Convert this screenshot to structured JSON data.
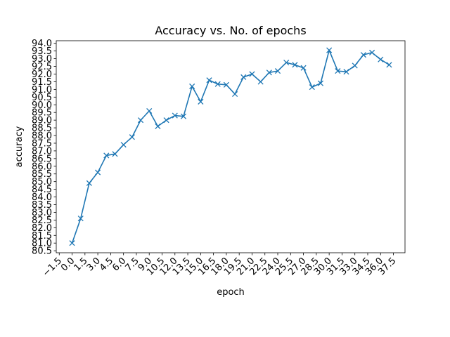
{
  "chart_data": {
    "type": "line",
    "title": "Accuracy vs. No. of epochs",
    "xlabel": "epoch",
    "ylabel": "accuracy",
    "xlim": [
      -1.85,
      38.85
    ],
    "ylim": [
      80.37,
      94.17
    ],
    "x_ticks": [
      -1.5,
      0.0,
      1.5,
      3.0,
      4.5,
      6.0,
      7.5,
      9.0,
      10.5,
      12.0,
      13.5,
      15.0,
      16.5,
      18.0,
      19.5,
      21.0,
      22.5,
      24.0,
      25.5,
      27.0,
      28.5,
      30.0,
      31.5,
      33.0,
      34.5,
      36.0,
      37.5
    ],
    "x_tick_labels": [
      "−1.5",
      "0.0",
      "1.5",
      "3.0",
      "4.5",
      "6.0",
      "7.5",
      "9.0",
      "10.5",
      "12.0",
      "13.5",
      "15.0",
      "16.5",
      "18.0",
      "19.5",
      "21.0",
      "22.5",
      "24.0",
      "25.5",
      "27.0",
      "28.5",
      "30.0",
      "31.5",
      "33.0",
      "34.5",
      "36.0",
      "37.5"
    ],
    "y_ticks": [
      80.5,
      81.0,
      81.5,
      82.0,
      82.5,
      83.0,
      83.5,
      84.0,
      84.5,
      85.0,
      85.5,
      86.0,
      86.5,
      87.0,
      87.5,
      88.0,
      88.5,
      89.0,
      89.5,
      90.0,
      90.5,
      91.0,
      91.5,
      92.0,
      92.5,
      93.0,
      93.5,
      94.0
    ],
    "y_tick_labels": [
      "80.5",
      "81.0",
      "81.5",
      "82.0",
      "82.5",
      "83.0",
      "83.5",
      "84.0",
      "84.5",
      "85.0",
      "85.5",
      "86.0",
      "86.5",
      "87.0",
      "87.5",
      "88.0",
      "88.5",
      "89.0",
      "89.5",
      "90.0",
      "90.5",
      "91.0",
      "91.5",
      "92.0",
      "92.5",
      "93.0",
      "93.5",
      "94.0"
    ],
    "grid": false,
    "line_color": "#1f77b4",
    "marker": "x",
    "series": [
      {
        "x": [
          0,
          1,
          2,
          3,
          4,
          5,
          6,
          7,
          8,
          9,
          10,
          11,
          12,
          13,
          14,
          15,
          16,
          17,
          18,
          19,
          20,
          21,
          22,
          23,
          24,
          25,
          26,
          27,
          28,
          29,
          30,
          31,
          32,
          33,
          34,
          35,
          36,
          37
        ],
        "values": [
          81.0,
          82.6,
          84.9,
          85.6,
          86.7,
          86.8,
          87.4,
          87.9,
          89.0,
          89.6,
          88.6,
          89.0,
          89.3,
          89.25,
          91.2,
          90.2,
          91.6,
          91.35,
          91.3,
          90.7,
          91.8,
          92.0,
          91.5,
          92.1,
          92.2,
          92.75,
          92.6,
          92.4,
          91.15,
          91.4,
          93.55,
          92.2,
          92.15,
          92.55,
          93.25,
          93.4,
          92.95,
          92.6
        ]
      }
    ]
  }
}
